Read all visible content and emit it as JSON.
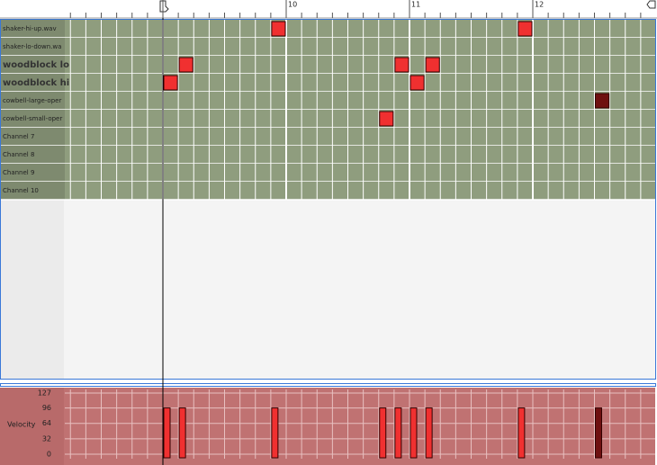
{
  "ruler": {
    "labels": [
      "10",
      "11",
      "12"
    ]
  },
  "channels": [
    "shaker-hi-up.wav",
    "shaker-lo-down.wa",
    "woodblock lo",
    "woodblock hi",
    "cowbell-large-oper",
    "cowbell-small-oper",
    "Channel 7",
    "Channel 8",
    "Channel 9",
    "Channel 10"
  ],
  "notes": [
    {
      "channel": 3,
      "step": 0,
      "velocity": 96,
      "color": "#f03030"
    },
    {
      "channel": 2,
      "step": 1,
      "velocity": 96,
      "color": "#f03030"
    },
    {
      "channel": 0,
      "step": 7,
      "velocity": 96,
      "color": "#f03030"
    },
    {
      "channel": 5,
      "step": 14,
      "velocity": 96,
      "color": "#f03030"
    },
    {
      "channel": 2,
      "step": 15,
      "velocity": 96,
      "color": "#f03030"
    },
    {
      "channel": 3,
      "step": 16,
      "velocity": 96,
      "color": "#f03030"
    },
    {
      "channel": 2,
      "step": 17,
      "velocity": 96,
      "color": "#f03030"
    },
    {
      "channel": 0,
      "step": 23,
      "velocity": 96,
      "color": "#f03030"
    },
    {
      "channel": 4,
      "step": 28,
      "velocity": 96,
      "color": "#6e1010"
    }
  ],
  "velocity_panel": {
    "label": "Velocity",
    "ylim": [
      0,
      127
    ],
    "yticks": [
      0,
      32,
      64,
      96,
      127
    ]
  }
}
